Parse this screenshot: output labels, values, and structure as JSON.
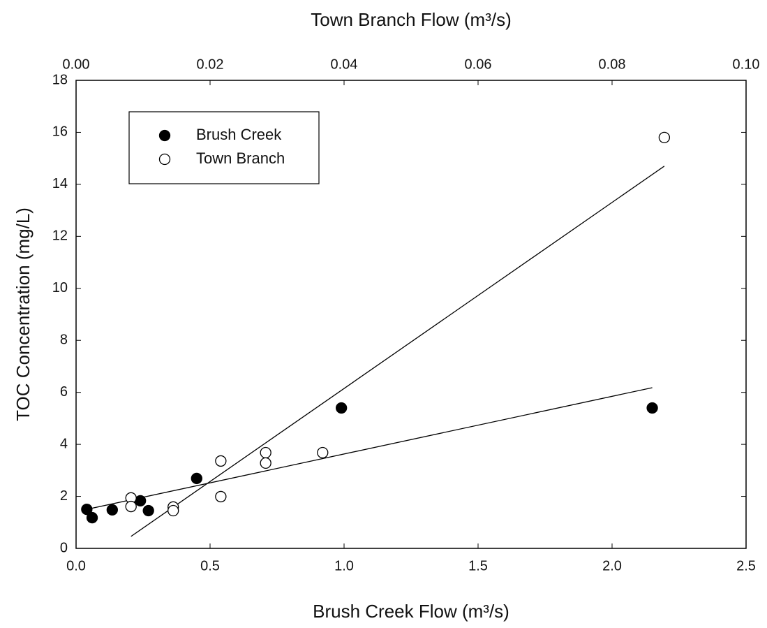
{
  "chart_data": {
    "type": "scatter",
    "title": "Town Branch Flow (m³/s)",
    "x_label": "Brush Creek Flow (m³/s)",
    "y_label": "TOC Concentration (mg/L)",
    "xlim": [
      0,
      2.5
    ],
    "xticks": [
      {
        "value": 0,
        "label": "0.0"
      },
      {
        "value": 0.5,
        "label": "0.5"
      },
      {
        "value": 1.0,
        "label": "1.0"
      },
      {
        "value": 1.5,
        "label": "1.5"
      },
      {
        "value": 2.0,
        "label": "2.0"
      },
      {
        "value": 2.5,
        "label": "2.5"
      }
    ],
    "x2lim": [
      0,
      0.1
    ],
    "x2ticks": [
      {
        "value": 0,
        "label": "0.00"
      },
      {
        "value": 0.02,
        "label": "0.02"
      },
      {
        "value": 0.04,
        "label": "0.04"
      },
      {
        "value": 0.06,
        "label": "0.06"
      },
      {
        "value": 0.08,
        "label": "0.08"
      },
      {
        "value": 0.1,
        "label": "0.10"
      }
    ],
    "ylim": [
      0,
      18
    ],
    "yticks": [
      0,
      2,
      4,
      6,
      8,
      10,
      12,
      14,
      16,
      18
    ],
    "legend_position": "upper left",
    "series": [
      {
        "name": "Brush Creek",
        "color": "#000000",
        "filled": true,
        "axis": "x",
        "x": [
          0.04,
          0.06,
          0.135,
          0.24,
          0.27,
          0.45,
          0.99,
          2.15
        ],
        "values": [
          1.5,
          1.18,
          1.48,
          1.83,
          1.45,
          2.69,
          5.4,
          5.4
        ],
        "trendline": {
          "x": [
            0.04,
            2.15
          ],
          "values": [
            1.5,
            6.18
          ]
        }
      },
      {
        "name": "Town Branch",
        "color": "#000000",
        "filled": false,
        "axis": "x2",
        "x": [
          0.0082,
          0.0082,
          0.0145,
          0.0145,
          0.0216,
          0.0216,
          0.0283,
          0.0283,
          0.0368,
          0.0878
        ],
        "values": [
          1.94,
          1.61,
          1.59,
          1.45,
          3.36,
          1.99,
          3.68,
          3.28,
          3.68,
          15.8
        ],
        "trendline": {
          "x": [
            0.0082,
            0.0878
          ],
          "values": [
            0.46,
            14.7
          ]
        }
      }
    ]
  }
}
